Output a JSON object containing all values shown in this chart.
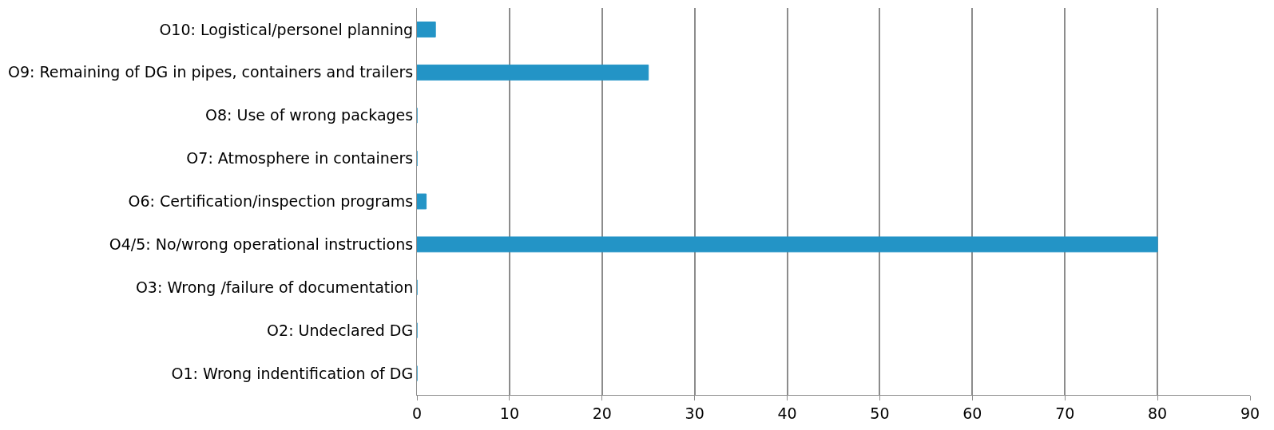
{
  "chart_data": {
    "type": "bar",
    "orientation": "horizontal",
    "categories": [
      "O10: Logistical/personel planning",
      "O9: Remaining of DG in pipes, containers and trailers",
      "O8: Use of wrong packages",
      "O7: Atmosphere in containers",
      "O6: Certification/inspection programs",
      "O4/5: No/wrong operational instructions",
      "O3: Wrong /failure of documentation",
      "O2: Undeclared DG",
      "O1: Wrong indentification of DG"
    ],
    "values": [
      2,
      25,
      0,
      0,
      1,
      80,
      0,
      0,
      0
    ],
    "color": "#2394c6",
    "xlim": [
      0,
      90
    ],
    "xticks": [
      0,
      10,
      20,
      30,
      40,
      50,
      60,
      70,
      80,
      90
    ],
    "grid": "x",
    "legend": false
  }
}
